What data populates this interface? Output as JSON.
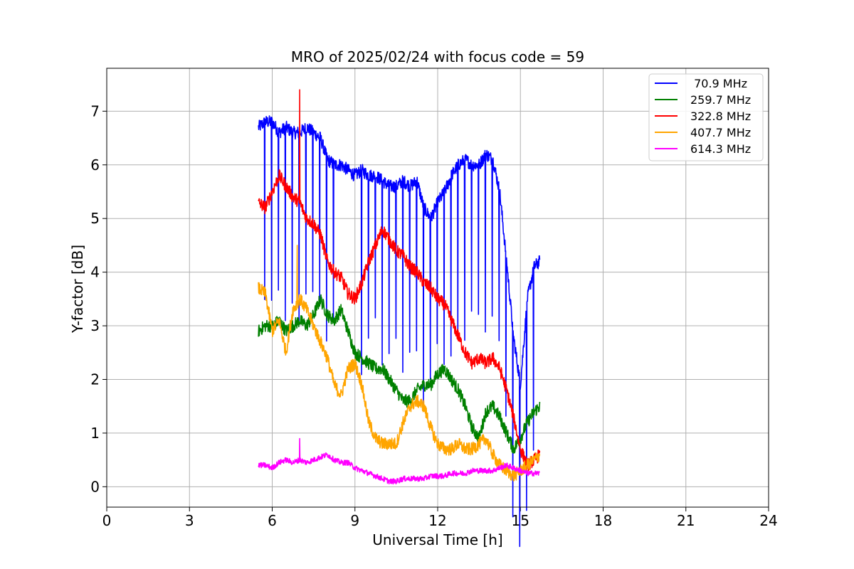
{
  "chart_data": {
    "type": "line",
    "title": "MRO of 2025/02/24 with focus code = 59",
    "xlabel": "Universal Time [h]",
    "ylabel": "Y-factor [dB]",
    "xlim": [
      0,
      24
    ],
    "ylim": [
      -0.38,
      7.8
    ],
    "xticks": [
      0,
      3,
      6,
      9,
      12,
      15,
      18,
      21,
      24
    ],
    "yticks": [
      0,
      1,
      2,
      3,
      4,
      5,
      6,
      7
    ],
    "grid": true,
    "legend_position": "top-right",
    "series": [
      {
        "name": " 70.9 MHz",
        "color": "#0000ff",
        "x": [
          5.5,
          5.75,
          6.0,
          6.25,
          6.5,
          6.75,
          7.0,
          7.25,
          7.5,
          7.75,
          8.0,
          8.25,
          8.5,
          8.75,
          9.0,
          9.25,
          9.5,
          9.75,
          10.0,
          10.25,
          10.5,
          10.75,
          11.0,
          11.25,
          11.5,
          11.75,
          12.0,
          12.25,
          12.5,
          12.75,
          13.0,
          13.25,
          13.5,
          13.75,
          14.0,
          14.25,
          14.5,
          14.75,
          15.0,
          15.25,
          15.5,
          15.7
        ],
        "y": [
          6.7,
          6.8,
          6.8,
          6.6,
          6.7,
          6.6,
          6.6,
          6.7,
          6.6,
          6.5,
          6.1,
          6.0,
          6.0,
          5.9,
          5.8,
          5.9,
          5.8,
          5.8,
          5.7,
          5.6,
          5.6,
          5.7,
          5.6,
          5.7,
          5.2,
          5.0,
          5.3,
          5.5,
          5.8,
          6.0,
          6.1,
          6.0,
          6.0,
          6.2,
          6.1,
          5.5,
          4.2,
          2.8,
          1.9,
          3.5,
          4.1,
          4.2
        ],
        "dip_period_h": 0.25,
        "dip_depth_db": 3.6
      },
      {
        "name": "259.7 MHz",
        "color": "#008000",
        "x": [
          5.5,
          5.75,
          6.0,
          6.25,
          6.5,
          6.75,
          7.0,
          7.25,
          7.5,
          7.75,
          8.0,
          8.25,
          8.5,
          8.75,
          9.0,
          9.25,
          9.5,
          9.75,
          10.0,
          10.25,
          10.5,
          10.75,
          11.0,
          11.25,
          11.5,
          11.75,
          12.0,
          12.25,
          12.5,
          12.75,
          13.0,
          13.25,
          13.5,
          13.75,
          14.0,
          14.25,
          14.5,
          14.75,
          15.0,
          15.25,
          15.5,
          15.7
        ],
        "y": [
          2.9,
          3.0,
          3.0,
          3.1,
          2.9,
          3.0,
          3.1,
          3.0,
          3.2,
          3.5,
          3.2,
          3.1,
          3.3,
          2.9,
          2.5,
          2.4,
          2.3,
          2.2,
          2.2,
          2.0,
          1.8,
          1.6,
          1.6,
          1.8,
          1.9,
          1.9,
          2.1,
          2.2,
          2.0,
          1.8,
          1.5,
          1.1,
          0.9,
          1.4,
          1.5,
          1.3,
          1.0,
          0.7,
          0.9,
          1.2,
          1.4,
          1.5
        ]
      },
      {
        "name": "322.8 MHz",
        "color": "#ff0000",
        "x": [
          5.5,
          5.75,
          6.0,
          6.25,
          6.5,
          6.75,
          7.0,
          7.25,
          7.5,
          7.75,
          8.0,
          8.25,
          8.5,
          8.75,
          9.0,
          9.25,
          9.5,
          9.75,
          10.0,
          10.25,
          10.5,
          10.75,
          11.0,
          11.25,
          11.5,
          11.75,
          12.0,
          12.25,
          12.5,
          12.75,
          13.0,
          13.25,
          13.5,
          13.75,
          14.0,
          14.25,
          14.5,
          14.75,
          15.0,
          15.25,
          15.5,
          15.7
        ],
        "y": [
          5.3,
          5.2,
          5.5,
          5.8,
          5.6,
          5.4,
          5.3,
          5.0,
          4.9,
          4.7,
          4.2,
          4.0,
          3.9,
          3.6,
          3.5,
          3.8,
          4.2,
          4.5,
          4.8,
          4.6,
          4.4,
          4.3,
          4.1,
          4.0,
          3.8,
          3.7,
          3.5,
          3.4,
          3.1,
          2.8,
          2.5,
          2.3,
          2.4,
          2.3,
          2.4,
          2.2,
          1.8,
          1.3,
          0.7,
          0.4,
          0.5,
          0.6
        ],
        "spike": {
          "x": 7.0,
          "y": 7.4
        }
      },
      {
        "name": "407.7 MHz",
        "color": "#ffa500",
        "x": [
          5.5,
          5.75,
          6.0,
          6.25,
          6.5,
          6.75,
          7.0,
          7.25,
          7.5,
          7.75,
          8.0,
          8.25,
          8.5,
          8.75,
          9.0,
          9.25,
          9.5,
          9.75,
          10.0,
          10.25,
          10.5,
          10.75,
          11.0,
          11.25,
          11.5,
          11.75,
          12.0,
          12.25,
          12.5,
          12.75,
          13.0,
          13.25,
          13.5,
          13.75,
          14.0,
          14.25,
          14.5,
          14.75,
          15.0,
          15.25,
          15.5,
          15.7
        ],
        "y": [
          3.7,
          3.6,
          2.9,
          3.1,
          2.5,
          3.3,
          3.5,
          3.3,
          3.0,
          2.7,
          2.4,
          1.9,
          1.7,
          2.2,
          2.3,
          1.9,
          1.2,
          0.9,
          0.8,
          0.8,
          0.8,
          1.2,
          1.5,
          1.6,
          1.5,
          1.1,
          0.8,
          0.7,
          0.7,
          0.8,
          0.7,
          0.7,
          0.8,
          0.9,
          0.6,
          0.4,
          0.3,
          0.2,
          0.3,
          0.4,
          0.5,
          0.6
        ],
        "spike": {
          "x": 6.9,
          "y": 4.5
        }
      },
      {
        "name": "614.3 MHz",
        "color": "#ff00ff",
        "x": [
          5.5,
          5.75,
          6.0,
          6.25,
          6.5,
          6.75,
          7.0,
          7.25,
          7.5,
          7.75,
          8.0,
          8.25,
          8.5,
          8.75,
          9.0,
          9.25,
          9.5,
          9.75,
          10.0,
          10.25,
          10.5,
          10.75,
          11.0,
          11.25,
          11.5,
          11.75,
          12.0,
          12.25,
          12.5,
          12.75,
          13.0,
          13.25,
          13.5,
          13.75,
          14.0,
          14.25,
          14.5,
          14.75,
          15.0,
          15.25,
          15.5,
          15.7
        ],
        "y": [
          0.4,
          0.4,
          0.35,
          0.45,
          0.5,
          0.45,
          0.5,
          0.45,
          0.5,
          0.55,
          0.6,
          0.5,
          0.45,
          0.45,
          0.35,
          0.3,
          0.25,
          0.2,
          0.15,
          0.1,
          0.1,
          0.15,
          0.15,
          0.15,
          0.15,
          0.2,
          0.2,
          0.2,
          0.25,
          0.25,
          0.25,
          0.3,
          0.3,
          0.3,
          0.3,
          0.35,
          0.4,
          0.35,
          0.3,
          0.25,
          0.25,
          0.25
        ],
        "spike": {
          "x": 7.0,
          "y": 0.9
        }
      }
    ]
  }
}
